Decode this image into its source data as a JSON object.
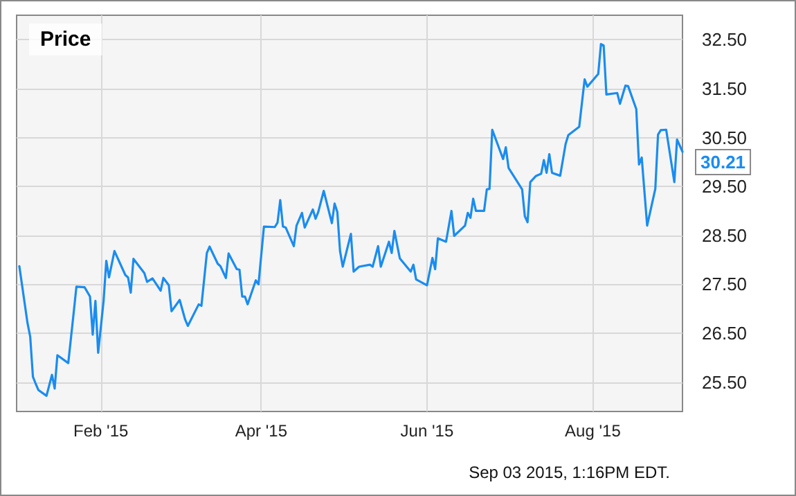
{
  "chart_data": {
    "type": "line",
    "title": "Price",
    "annotations": [
      {
        "text": "30.21",
        "x": "2015-09-03",
        "y": 30.21
      },
      "Sep 03 2015, 1:16PM EDT."
    ],
    "x": [
      "2015-01-02",
      "2015-01-05",
      "2015-01-06",
      "2015-01-07",
      "2015-01-08",
      "2015-01-09",
      "2015-01-12",
      "2015-01-14",
      "2015-01-15",
      "2015-01-16",
      "2015-01-20",
      "2015-01-22",
      "2015-01-23",
      "2015-01-26",
      "2015-01-28",
      "2015-01-29",
      "2015-01-30",
      "2015-01-31",
      "2015-02-02",
      "2015-02-03",
      "2015-02-04",
      "2015-02-06",
      "2015-02-10",
      "2015-02-11",
      "2015-02-12",
      "2015-02-13",
      "2015-02-17",
      "2015-02-18",
      "2015-02-20",
      "2015-02-23",
      "2015-02-24",
      "2015-02-26",
      "2015-02-27",
      "2015-03-02",
      "2015-03-04",
      "2015-03-05",
      "2015-03-09",
      "2015-03-10",
      "2015-03-12",
      "2015-03-13",
      "2015-03-16",
      "2015-03-17",
      "2015-03-19",
      "2015-03-20",
      "2015-03-23",
      "2015-03-24",
      "2015-03-25",
      "2015-03-26",
      "2015-03-27",
      "2015-03-30",
      "2015-03-31",
      "2015-04-02",
      "2015-04-06",
      "2015-04-07",
      "2015-04-08",
      "2015-04-09",
      "2015-04-10",
      "2015-04-13",
      "2015-04-14",
      "2015-04-16",
      "2015-04-17",
      "2015-04-20",
      "2015-04-21",
      "2015-04-22",
      "2015-04-24",
      "2015-04-27",
      "2015-04-28",
      "2015-04-29",
      "2015-04-30",
      "2015-05-01",
      "2015-05-04",
      "2015-05-05",
      "2015-05-07",
      "2015-05-11",
      "2015-05-12",
      "2015-05-14",
      "2015-05-15",
      "2015-05-18",
      "2015-05-19",
      "2015-05-20",
      "2015-05-22",
      "2015-05-26",
      "2015-05-27",
      "2015-05-28",
      "2015-06-01",
      "2015-06-03",
      "2015-06-04",
      "2015-06-05",
      "2015-06-08",
      "2015-06-10",
      "2015-06-11",
      "2015-06-15",
      "2015-06-16",
      "2015-06-17",
      "2015-06-18",
      "2015-06-19",
      "2015-06-22",
      "2015-06-23",
      "2015-06-24",
      "2015-06-25",
      "2015-06-29",
      "2015-06-30",
      "2015-07-01",
      "2015-07-06",
      "2015-07-07",
      "2015-07-08",
      "2015-07-09",
      "2015-07-11",
      "2015-07-13",
      "2015-07-14",
      "2015-07-15",
      "2015-07-16",
      "2015-07-17",
      "2015-07-20",
      "2015-07-22",
      "2015-07-23",
      "2015-07-27",
      "2015-07-29",
      "2015-07-30",
      "2015-08-03",
      "2015-08-04",
      "2015-08-05",
      "2015-08-06",
      "2015-08-10",
      "2015-08-11",
      "2015-08-13",
      "2015-08-14",
      "2015-08-17",
      "2015-08-18",
      "2015-08-19",
      "2015-08-21",
      "2015-08-24",
      "2015-08-25",
      "2015-08-26",
      "2015-08-28",
      "2015-08-31",
      "2015-09-01",
      "2015-09-03"
    ],
    "series": [
      {
        "color": "#1a8cf0",
        "values": [
          27.87,
          26.71,
          26.43,
          25.61,
          25.47,
          25.34,
          25.22,
          25.65,
          25.37,
          26.05,
          25.89,
          26.92,
          27.45,
          27.44,
          27.25,
          26.47,
          27.16,
          26.1,
          27.16,
          27.98,
          27.64,
          28.18,
          27.69,
          27.64,
          27.33,
          28.02,
          27.73,
          27.55,
          27.62,
          27.37,
          27.63,
          27.48,
          26.95,
          27.18,
          26.78,
          26.65,
          27.09,
          27.06,
          28.14,
          28.27,
          27.92,
          27.87,
          27.63,
          28.13,
          27.81,
          27.8,
          27.25,
          27.25,
          27.09,
          27.58,
          27.5,
          28.68,
          28.67,
          28.76,
          29.22,
          28.68,
          28.66,
          28.28,
          28.7,
          28.96,
          28.66,
          29.03,
          28.84,
          28.98,
          29.41,
          28.75,
          29.15,
          28.98,
          28.18,
          27.86,
          28.53,
          27.76,
          27.86,
          27.9,
          27.86,
          28.28,
          27.86,
          28.37,
          28.14,
          28.59,
          28.03,
          27.76,
          27.9,
          27.6,
          27.48,
          28.04,
          27.81,
          28.44,
          28.37,
          29.0,
          28.49,
          28.7,
          28.96,
          28.86,
          29.25,
          29.0,
          29.0,
          29.44,
          29.45,
          30.66,
          30.06,
          30.3,
          29.88,
          29.44,
          28.89,
          28.77,
          29.59,
          29.71,
          29.76,
          30.04,
          29.78,
          30.16,
          29.78,
          29.72,
          30.37,
          30.55,
          30.72,
          31.69,
          31.54,
          31.8,
          32.41,
          32.38,
          31.38,
          31.41,
          31.19,
          31.56,
          31.55,
          31.08,
          29.95,
          30.09,
          28.7,
          29.45,
          30.56,
          30.65,
          30.66,
          29.59,
          30.46,
          30.21
        ]
      }
    ],
    "xlim": [
      "2015-01-01",
      "2015-09-03"
    ],
    "xticks": [
      {
        "value": "2015-02-01",
        "label": "Feb '15"
      },
      {
        "value": "2015-04-01",
        "label": "Apr '15"
      },
      {
        "value": "2015-06-01",
        "label": "Jun '15"
      },
      {
        "value": "2015-08-01",
        "label": "Aug '15"
      }
    ],
    "ylim": [
      24.9,
      33.0
    ],
    "yticks": [
      {
        "value": 25.5,
        "label": "25.50"
      },
      {
        "value": 26.5,
        "label": "26.50"
      },
      {
        "value": 27.5,
        "label": "27.50"
      },
      {
        "value": 28.5,
        "label": "28.50"
      },
      {
        "value": 29.5,
        "label": "29.50"
      },
      {
        "value": 30.5,
        "label": "30.50"
      },
      {
        "value": 31.5,
        "label": "31.50"
      },
      {
        "value": 32.5,
        "label": "32.50"
      }
    ],
    "grid": true,
    "marker": "none",
    "line_style": "solid"
  }
}
